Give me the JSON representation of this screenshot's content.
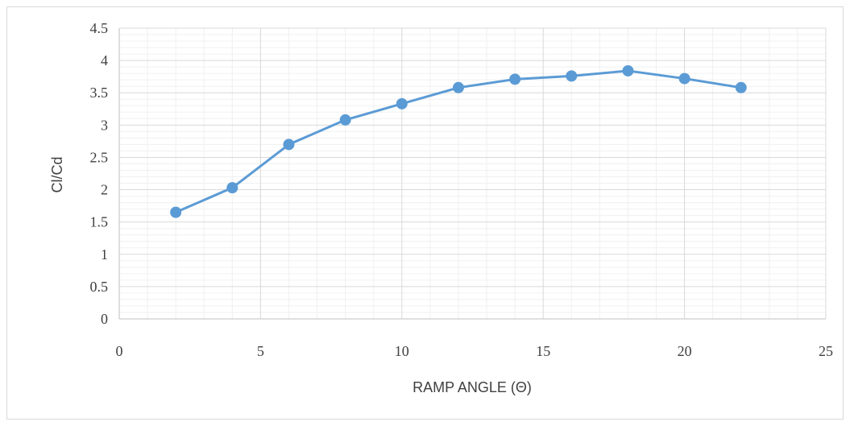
{
  "chart_data": {
    "type": "line",
    "title": "",
    "xlabel": "RAMP ANGLE (Θ)",
    "ylabel": "Cl/Cd",
    "xlim": [
      0,
      25
    ],
    "ylim": [
      0,
      4.5
    ],
    "x_ticks": [
      "0",
      "5",
      "10",
      "15",
      "20",
      "25"
    ],
    "y_ticks": [
      "0",
      "0.5",
      "1",
      "1.5",
      "2",
      "2.5",
      "3",
      "3.5",
      "4",
      "4.5"
    ],
    "grid": true,
    "legend": "none",
    "series": [
      {
        "color": "#5b9bd5",
        "x": [
          2,
          4,
          6,
          8,
          10,
          12,
          14,
          16,
          18,
          20,
          22
        ],
        "y": [
          1.65,
          2.03,
          2.7,
          3.08,
          3.33,
          3.58,
          3.71,
          3.76,
          3.84,
          3.72,
          3.58
        ]
      }
    ]
  }
}
